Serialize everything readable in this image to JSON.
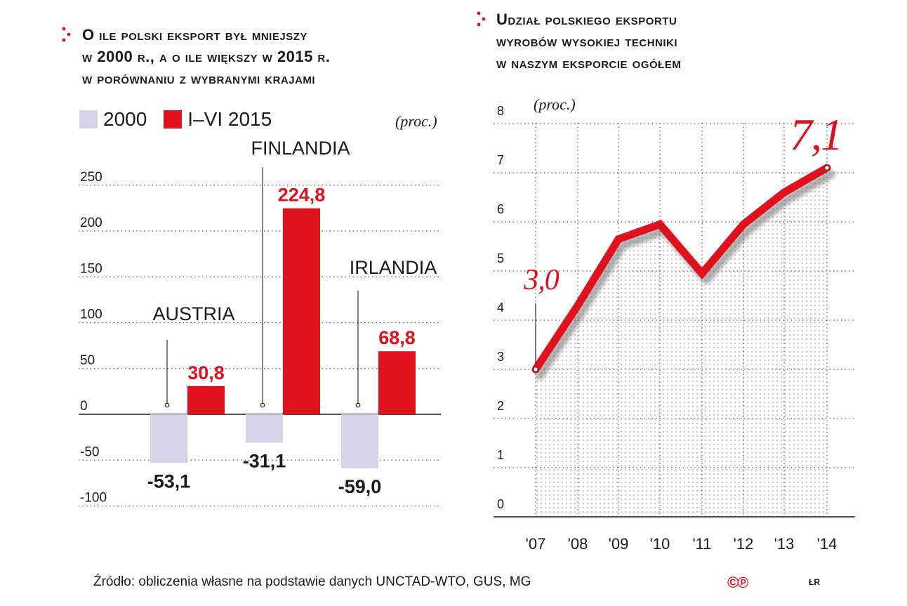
{
  "left_chart": {
    "title_lines": [
      "O ile  polski eksport był mniejszy",
      "w 2000 r., a o ile większy w 2015 r.",
      "w porównaniu z wybranymi krajami"
    ],
    "unit": "(proc.)",
    "colors": {
      "s2000": "#d8d3e8",
      "s2015": "#e0101c",
      "accent": "#e0101c"
    }
  },
  "right_chart": {
    "title_lines": [
      "Udział polskiego eksportu",
      "wyrobów wysokiej techniki",
      "w naszym eksporcie ogółem"
    ],
    "unit": "(proc.)",
    "colors": {
      "line": "#e0101c"
    }
  },
  "chart_data": [
    {
      "type": "bar",
      "categories": [
        "AUSTRIA",
        "FINLANDIA",
        "IRLANDIA"
      ],
      "series": [
        {
          "name": "2000",
          "values": [
            -53.1,
            -31.1,
            -59.0
          ],
          "labels": [
            "-53,1",
            "-31,1",
            "-59,0"
          ]
        },
        {
          "name": "I–VI 2015",
          "values": [
            30.8,
            224.8,
            68.8
          ],
          "labels": [
            "30,8",
            "224,8",
            "68,8"
          ]
        }
      ],
      "yticks": [
        250,
        200,
        150,
        100,
        50,
        0,
        -50,
        -100
      ],
      "ytick_labels": [
        "250",
        "200",
        "150",
        "100",
        "50",
        "0",
        "-50",
        "-100"
      ],
      "ylim": [
        -100,
        250
      ],
      "grid": true,
      "legend": "top-left"
    },
    {
      "type": "line",
      "x": [
        "'07",
        "'08",
        "'09",
        "'10",
        "'11",
        "'12",
        "'13",
        "'14"
      ],
      "values": [
        3.0,
        4.3,
        5.65,
        5.95,
        4.95,
        5.95,
        6.6,
        7.1
      ],
      "yticks": [
        0,
        1,
        2,
        3,
        4,
        5,
        6,
        7,
        8
      ],
      "ytick_labels": [
        "0",
        "1",
        "2",
        "3",
        "4",
        "5",
        "6",
        "7",
        "8"
      ],
      "ylim": [
        0,
        8
      ],
      "annotations": [
        {
          "index": 0,
          "label": "3,0"
        },
        {
          "index": 7,
          "label": "7,1"
        }
      ],
      "grid": true
    }
  ],
  "footer": {
    "source": "Źródło: obliczenia własne na podstawie danych UNCTAD-WTO, GUS, MG",
    "logo": "©℗",
    "author": "ŁR"
  }
}
